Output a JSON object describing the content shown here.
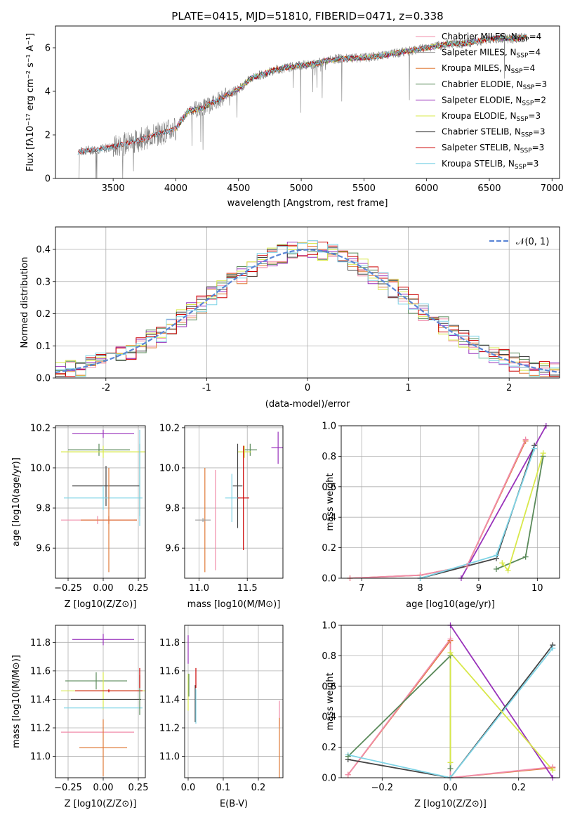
{
  "figure_title": "PLATE=0415, MJD=51810, FIBERID=0471, z=0.338",
  "colors": {
    "Chabrier MILES": "#f08caa",
    "Salpeter MILES": "#999999",
    "Kroupa MILES": "#e07b39",
    "Chabrier ELODIE": "#5a8a5a",
    "Salpeter ELODIE": "#9933bb",
    "Kroupa ELODIE": "#d8e84a",
    "Chabrier STELIB": "#444444",
    "Salpeter STELIB": "#cc0000",
    "Kroupa STELIB": "#7fd4e6",
    "gaussian": "#5b86d6"
  },
  "chart_data": [
    {
      "id": "spectrum",
      "type": "line",
      "title": "PLATE=0415, MJD=51810, FIBERID=0471, z=0.338",
      "xlabel": "wavelength [Angstrom, rest frame]",
      "ylabel": "Flux [f_λ 10^-17 erg cm^-2 s^-1 A^-1]",
      "xlim": [
        3040,
        7060
      ],
      "ylim": [
        0,
        7
      ],
      "xticks": [
        3500,
        4000,
        4500,
        5000,
        5500,
        6000,
        6500,
        7000
      ],
      "yticks": [
        0,
        2,
        4,
        6
      ],
      "continuum_x": [
        3220,
        3300,
        3400,
        3500,
        3600,
        3700,
        3800,
        3900,
        4000,
        4100,
        4200,
        4300,
        4400,
        4500,
        4600,
        4700,
        4800,
        4900,
        5000,
        5100,
        5200,
        5300,
        5400,
        5500,
        5600,
        5700,
        5800,
        5900,
        6000,
        6100,
        6200,
        6300,
        6400,
        6500,
        6600,
        6700,
        6800
      ],
      "continuum_y": [
        1.2,
        1.3,
        1.35,
        1.45,
        1.6,
        1.75,
        1.95,
        2.1,
        2.3,
        3.1,
        3.2,
        3.5,
        3.8,
        4.1,
        4.6,
        4.8,
        5.0,
        5.1,
        5.2,
        5.25,
        5.4,
        5.5,
        5.5,
        5.55,
        5.6,
        5.7,
        5.8,
        5.9,
        6.0,
        6.1,
        6.2,
        6.2,
        6.3,
        6.4,
        6.45,
        6.4,
        6.5
      ],
      "legend": [
        {
          "label": "Chabrier MILES, N",
          "sub": "SSP",
          "suffix": "=4",
          "color_key": "Chabrier MILES"
        },
        {
          "label": "Salpeter MILES, N",
          "sub": "SSP",
          "suffix": "=4",
          "color_key": "Salpeter MILES"
        },
        {
          "label": "Kroupa MILES, N",
          "sub": "SSP",
          "suffix": "=4",
          "color_key": "Kroupa MILES"
        },
        {
          "label": "Chabrier ELODIE, N",
          "sub": "SSP",
          "suffix": "=3",
          "color_key": "Chabrier ELODIE"
        },
        {
          "label": "Salpeter ELODIE, N",
          "sub": "SSP",
          "suffix": "=2",
          "color_key": "Salpeter ELODIE"
        },
        {
          "label": "Kroupa ELODIE, N",
          "sub": "SSP",
          "suffix": "=3",
          "color_key": "Kroupa ELODIE"
        },
        {
          "label": "Chabrier STELIB, N",
          "sub": "SSP",
          "suffix": "=3",
          "color_key": "Chabrier STELIB"
        },
        {
          "label": "Salpeter STELIB, N",
          "sub": "SSP",
          "suffix": "=3",
          "color_key": "Salpeter STELIB"
        },
        {
          "label": "Kroupa STELIB, N",
          "sub": "SSP",
          "suffix": "=3",
          "color_key": "Kroupa STELIB"
        }
      ]
    },
    {
      "id": "residuals",
      "type": "histogram",
      "xlabel": "(data-model)/error",
      "ylabel": "Normed distribution",
      "xlim": [
        -2.5,
        2.5
      ],
      "ylim": [
        0,
        0.47
      ],
      "xticks": [
        -2,
        -1,
        0,
        1,
        2
      ],
      "yticks": [
        0.0,
        0.1,
        0.2,
        0.3,
        0.4
      ],
      "legend": "𝒩(0, 1)",
      "grid": true
    },
    {
      "id": "age_vs_Z",
      "type": "errorbar",
      "xlabel": "Z [log10(Z/Z⊙)]",
      "ylabel": "age [log10(age/yr)]",
      "xlim": [
        -0.34,
        0.3
      ],
      "ylim": [
        9.45,
        10.21
      ],
      "xticks": [
        -0.25,
        0.0,
        0.25
      ],
      "xticklabels": [
        "−0.25",
        "0.00",
        "0.25"
      ],
      "yticks": [
        9.6,
        9.8,
        10.0,
        10.2
      ],
      "points": [
        {
          "s": "Salpeter ELODIE",
          "x": 0.0,
          "xerr": 0.22,
          "y": 10.17,
          "yerr": 0.02
        },
        {
          "s": "Chabrier ELODIE",
          "x": -0.03,
          "xerr": 0.22,
          "y": 10.09,
          "yerr": 0.03
        },
        {
          "s": "Kroupa ELODIE",
          "x": 0.0,
          "xerr": 0.3,
          "y": 10.08,
          "yerr": 0.03
        },
        {
          "s": "Chabrier STELIB",
          "x": 0.02,
          "xerr": 0.24,
          "y": 9.91,
          "yerr": 0.1
        },
        {
          "s": "Kroupa STELIB",
          "x": 0.0,
          "xerr": 0.28,
          "y": 9.85,
          "yerr": 0.06
        },
        {
          "s": "Salpeter STELIB",
          "x": 0.04,
          "xerr": 0.2,
          "y": 9.74,
          "yerr": 0.02
        },
        {
          "s": "Chabrier MILES",
          "x": -0.04,
          "xerr": 0.26,
          "y": 9.74,
          "yerr": 0.02
        },
        {
          "s": "Kroupa MILES",
          "x": 0.04,
          "xerr": 0.2,
          "y": 9.74,
          "yerr": 0.26
        },
        {
          "s": "Chabrier ELODIE",
          "x": 0.26,
          "xerr": 0.0,
          "y": 9.94,
          "yerr": 0.18
        },
        {
          "s": "Kroupa STELIB",
          "x": 0.26,
          "xerr": 0.0,
          "y": 9.95,
          "yerr": 0.24
        }
      ],
      "grid": true
    },
    {
      "id": "age_vs_mass",
      "type": "errorbar",
      "xlabel": "mass [log10(M/M⊙)]",
      "xlim": [
        10.85,
        11.87
      ],
      "ylim": [
        9.45,
        10.21
      ],
      "xticks": [
        11.0,
        11.5
      ],
      "xticklabels": [
        "11.0",
        "11.5"
      ],
      "yticks": [
        9.6,
        9.8,
        10.0,
        10.2
      ],
      "points": [
        {
          "s": "Salpeter ELODIE",
          "x": 11.82,
          "xerr": 0.07,
          "y": 10.1,
          "yerr": 0.08
        },
        {
          "s": "Chabrier ELODIE",
          "x": 11.53,
          "xerr": 0.07,
          "y": 10.09,
          "yerr": 0.03
        },
        {
          "s": "Kroupa ELODIE",
          "x": 11.47,
          "xerr": 0.07,
          "y": 10.08,
          "yerr": 0.03
        },
        {
          "s": "Chabrier STELIB",
          "x": 11.4,
          "xerr": 0.05,
          "y": 9.91,
          "yerr": 0.21
        },
        {
          "s": "Kroupa STELIB",
          "x": 11.34,
          "xerr": 0.07,
          "y": 9.85,
          "yerr": 0.12
        },
        {
          "s": "Salpeter STELIB",
          "x": 11.46,
          "xerr": 0.06,
          "y": 9.85,
          "yerr": 0.26
        },
        {
          "s": "Chabrier MILES",
          "x": 11.17,
          "xerr": 0.0,
          "y": 9.74,
          "yerr": 0.25
        },
        {
          "s": "Kroupa MILES",
          "x": 11.06,
          "xerr": 0.0,
          "y": 9.74,
          "yerr": 0.26
        },
        {
          "s": "Salpeter MILES",
          "x": 11.04,
          "xerr": 0.08,
          "y": 9.74,
          "yerr": 0.01
        }
      ],
      "grid": true
    },
    {
      "id": "mw_vs_age",
      "type": "line",
      "xlabel": "age [log10(age/yr)]",
      "ylabel": "mass weight",
      "xlim": [
        6.65,
        10.38
      ],
      "ylim": [
        0,
        1
      ],
      "xticks": [
        7,
        8,
        9,
        10
      ],
      "yticks": [
        0.0,
        0.2,
        0.4,
        0.6,
        0.8,
        1.0
      ],
      "series": [
        {
          "s": "Kroupa MILES",
          "x": [
            6.8,
            8.0,
            8.8,
            9.8
          ],
          "y": [
            0.0,
            0.02,
            0.08,
            0.9
          ]
        },
        {
          "s": "Chabrier MILES",
          "x": [
            6.8,
            8.0,
            8.8,
            9.8
          ],
          "y": [
            0.0,
            0.02,
            0.08,
            0.91
          ]
        },
        {
          "s": "Salpeter ELODIE",
          "x": [
            8.7,
            10.15
          ],
          "y": [
            0.0,
            1.0
          ]
        },
        {
          "s": "Chabrier STELIB",
          "x": [
            8.0,
            9.3,
            9.95
          ],
          "y": [
            0.0,
            0.13,
            0.87
          ]
        },
        {
          "s": "Kroupa STELIB",
          "x": [
            8.0,
            9.3,
            9.95
          ],
          "y": [
            0.0,
            0.15,
            0.85
          ]
        },
        {
          "s": "Chabrier ELODIE",
          "x": [
            9.3,
            9.8,
            10.1
          ],
          "y": [
            0.06,
            0.14,
            0.8
          ]
        },
        {
          "s": "Kroupa ELODIE",
          "x": [
            9.4,
            9.5,
            10.1
          ],
          "y": [
            0.1,
            0.05,
            0.82
          ]
        }
      ],
      "grid": true
    },
    {
      "id": "mass_vs_Z",
      "type": "errorbar",
      "xlabel": "Z [log10(Z/Z⊙)]",
      "ylabel": "mass [log10(M/M⊙)]",
      "xlim": [
        -0.34,
        0.3
      ],
      "ylim": [
        10.85,
        11.92
      ],
      "xticks": [
        -0.25,
        0.0,
        0.25
      ],
      "xticklabels": [
        "−0.25",
        "0.00",
        "0.25"
      ],
      "yticks": [
        11.0,
        11.2,
        11.4,
        11.6,
        11.8
      ],
      "points": [
        {
          "s": "Salpeter ELODIE",
          "x": 0.0,
          "xerr": 0.22,
          "y": 11.82,
          "yerr": 0.04
        },
        {
          "s": "Chabrier ELODIE",
          "x": -0.05,
          "xerr": 0.22,
          "y": 11.53,
          "yerr": 0.06
        },
        {
          "s": "Kroupa ELODIE",
          "x": 0.0,
          "xerr": 0.3,
          "y": 11.46,
          "yerr": 0.13
        },
        {
          "s": "Salpeter STELIB",
          "x": 0.04,
          "xerr": 0.24,
          "y": 11.46,
          "yerr": 0.01
        },
        {
          "s": "Chabrier STELIB",
          "x": 0.02,
          "xerr": 0.25,
          "y": 11.4,
          "yerr": 0.0
        },
        {
          "s": "Kroupa STELIB",
          "x": 0.0,
          "xerr": 0.28,
          "y": 11.34,
          "yerr": 0.0
        },
        {
          "s": "Chabrier MILES",
          "x": -0.04,
          "xerr": 0.26,
          "y": 11.17,
          "yerr": 0.0
        },
        {
          "s": "Kroupa MILES",
          "x": 0.0,
          "xerr": 0.17,
          "y": 11.06,
          "yerr": 0.2
        },
        {
          "s": "Chabrier ELODIE",
          "x": 0.26,
          "xerr": 0.0,
          "y": 11.43,
          "yerr": 0.14
        },
        {
          "s": "Salpeter STELIB",
          "x": 0.26,
          "xerr": 0.0,
          "y": 11.55,
          "yerr": 0.07
        }
      ],
      "grid": true
    },
    {
      "id": "mass_vs_ebv",
      "type": "errorbar",
      "xlabel": "E(B-V)",
      "xlim": [
        -0.01,
        0.27
      ],
      "ylim": [
        10.85,
        11.92
      ],
      "xticks": [
        0.0,
        0.1,
        0.2
      ],
      "xticklabels": [
        "0.0",
        "0.1",
        "0.2"
      ],
      "yticks": [
        11.0,
        11.2,
        11.4,
        11.6,
        11.8
      ],
      "points": [
        {
          "s": "Salpeter ELODIE",
          "x": 0.0,
          "xerr": 0.0,
          "y": 11.75,
          "yerr": 0.1
        },
        {
          "s": "Kroupa ELODIE",
          "x": 0.0,
          "xerr": 0.0,
          "y": 11.45,
          "yerr": 0.13
        },
        {
          "s": "Chabrier ELODIE",
          "x": 0.002,
          "xerr": 0.0,
          "y": 11.5,
          "yerr": 0.08
        },
        {
          "s": "Chabrier STELIB",
          "x": 0.02,
          "xerr": 0.0,
          "y": 11.37,
          "yerr": 0.13
        },
        {
          "s": "Kroupa STELIB",
          "x": 0.022,
          "xerr": 0.0,
          "y": 11.35,
          "yerr": 0.12
        },
        {
          "s": "Salpeter STELIB",
          "x": 0.022,
          "xerr": 0.0,
          "y": 11.55,
          "yerr": 0.07
        },
        {
          "s": "Chabrier MILES",
          "x": 0.26,
          "xerr": 0.0,
          "y": 11.3,
          "yerr": 0.09
        },
        {
          "s": "Kroupa MILES",
          "x": 0.26,
          "xerr": 0.0,
          "y": 11.06,
          "yerr": 0.21
        }
      ],
      "grid": true
    },
    {
      "id": "mw_vs_Z",
      "type": "line",
      "xlabel": "Z [log10(Z/Z⊙)]",
      "ylabel": "mass weight",
      "xlim": [
        -0.32,
        0.32
      ],
      "ylim": [
        0,
        1
      ],
      "xticks": [
        -0.2,
        0.0,
        0.2
      ],
      "xticklabels": [
        "−0.2",
        "0.0",
        "0.2"
      ],
      "yticks": [
        0.0,
        0.2,
        0.4,
        0.6,
        0.8,
        1.0
      ],
      "series": [
        {
          "s": "Kroupa MILES",
          "x": [
            -0.3,
            0.0,
            0.0,
            0.3
          ],
          "y": [
            0.02,
            0.9,
            0.0,
            0.065
          ]
        },
        {
          "s": "Chabrier MILES",
          "x": [
            -0.3,
            0.0,
            0.0,
            0.3
          ],
          "y": [
            0.02,
            0.91,
            0.0,
            0.07
          ]
        },
        {
          "s": "Salpeter ELODIE",
          "x": [
            0.0,
            0.3
          ],
          "y": [
            1.0,
            0.0
          ]
        },
        {
          "s": "Chabrier STELIB",
          "x": [
            -0.3,
            0.0,
            0.3
          ],
          "y": [
            0.12,
            0.0,
            0.87
          ]
        },
        {
          "s": "Kroupa STELIB",
          "x": [
            -0.3,
            0.0,
            0.3
          ],
          "y": [
            0.15,
            0.0,
            0.85
          ]
        },
        {
          "s": "Chabrier ELODIE",
          "x": [
            -0.3,
            0.0,
            0.0
          ],
          "y": [
            0.14,
            0.8,
            0.06
          ]
        },
        {
          "s": "Kroupa ELODIE",
          "x": [
            0.0,
            0.0,
            0.3
          ],
          "y": [
            0.1,
            0.82,
            0.05
          ]
        }
      ],
      "grid": true
    }
  ]
}
